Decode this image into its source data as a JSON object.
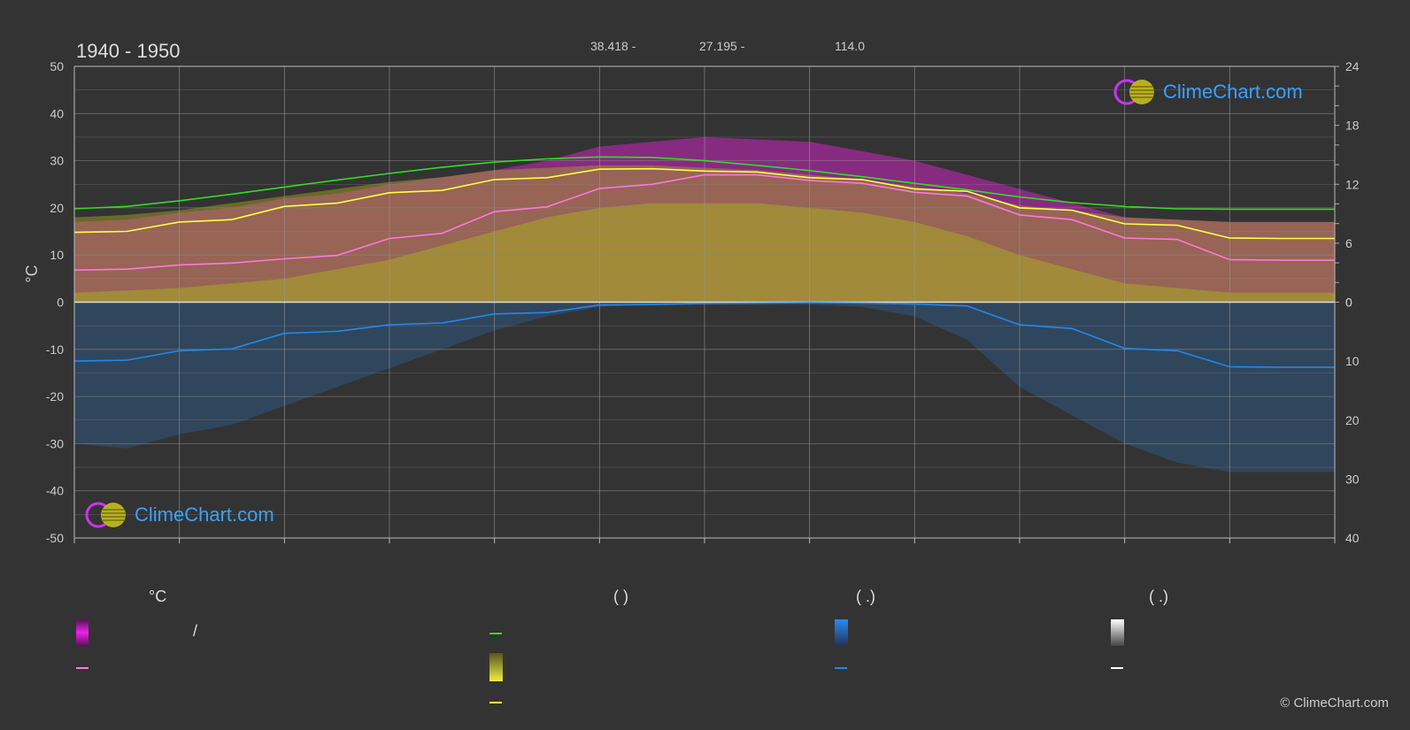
{
  "title": "1940 - 1950",
  "header_values": [
    "38.418 -",
    "27.195 -",
    "114.0"
  ],
  "logo_text": "ClimeChart.com",
  "copyright": "© ClimeChart.com",
  "legend": {
    "col1_head": "°C",
    "col2_head": "(          )",
    "col3_head": "(    .)",
    "col4_head": "(    .)",
    "slash": "/"
  },
  "colors": {
    "background": "#333333",
    "sunshine_line": "#33dd22",
    "daylight_line": "#ffff44",
    "max_temp_line": "#ff77dd",
    "precip_line": "#2288ee",
    "magenta_band": "#ee22dd",
    "olive_band": "#aaaa22",
    "blue_band": "#2a6aaa"
  },
  "chart_data": {
    "type": "line",
    "title": "1940 - 1950",
    "ylabel_left": "°C",
    "y_left_lim": [
      -50,
      50
    ],
    "y_left_ticks": [
      50,
      40,
      30,
      20,
      10,
      0,
      -10,
      -20,
      -30,
      -40,
      -50
    ],
    "y_right_top_ticks": [
      24,
      18,
      12,
      6,
      0
    ],
    "y_right_bottom_ticks": [
      0,
      10,
      20,
      30,
      40
    ],
    "x": [
      0,
      0.5,
      1,
      1.5,
      2,
      2.5,
      3,
      3.5,
      4,
      4.5,
      5,
      5.5,
      6,
      6.5,
      7,
      7.5,
      8,
      8.5,
      9,
      9.5,
      10,
      10.5,
      11,
      11.5,
      12
    ],
    "series": [
      {
        "key": "sunshine",
        "color": "#33dd22",
        "values": [
          19.8,
          20.3,
          21.5,
          22.9,
          24.4,
          25.9,
          27.3,
          28.6,
          29.7,
          30.4,
          30.8,
          30.7,
          30.0,
          29.0,
          27.9,
          26.6,
          25.2,
          23.8,
          22.3,
          21.1,
          20.3,
          19.8,
          19.7,
          19.7,
          19.7
        ]
      },
      {
        "key": "daylight",
        "color": "#ffff44",
        "values": [
          14.8,
          15.0,
          17.0,
          17.5,
          20.3,
          21.0,
          23.2,
          23.7,
          26.0,
          26.4,
          28.2,
          28.3,
          27.8,
          27.6,
          26.4,
          26.0,
          24.0,
          23.5,
          20.0,
          19.5,
          16.6,
          16.3,
          13.6,
          13.5,
          13.5
        ]
      },
      {
        "key": "max_temp",
        "color": "#ff77dd",
        "values": [
          6.8,
          7.0,
          7.9,
          8.3,
          9.2,
          9.9,
          13.5,
          14.6,
          19.2,
          20.2,
          24.1,
          25.0,
          27.0,
          27.0,
          25.8,
          25.2,
          23.3,
          22.5,
          18.5,
          17.5,
          13.6,
          13.3,
          9.0,
          8.9,
          8.9
        ]
      },
      {
        "key": "precip",
        "color": "#2288ee",
        "values": [
          -12.5,
          -12.3,
          -10.3,
          -9.9,
          -6.6,
          -6.2,
          -4.8,
          -4.4,
          -2.5,
          -2.2,
          -0.6,
          -0.5,
          -0.3,
          -0.2,
          -0.1,
          -0.2,
          -0.4,
          -0.8,
          -4.8,
          -5.6,
          -9.8,
          -10.3,
          -13.7,
          -13.8,
          -13.8
        ]
      }
    ],
    "band_magenta_top": [
      17,
      17.5,
      19,
      20,
      22,
      23,
      25,
      26.5,
      28,
      30,
      33,
      34,
      35,
      34.5,
      34,
      32,
      30,
      27,
      24,
      21,
      18,
      17.5,
      17,
      17,
      17
    ],
    "band_olive_top": [
      18,
      18.5,
      19.5,
      21,
      22.5,
      24,
      25.5,
      26.5,
      28,
      28.5,
      29,
      29,
      28.5,
      28,
      27,
      26,
      24.5,
      23,
      20.5,
      19.5,
      18,
      17.5,
      17,
      17,
      17
    ],
    "band_olive_inner": [
      2,
      2.5,
      3,
      4,
      5,
      7,
      9,
      12,
      15,
      18,
      20,
      21,
      21,
      21,
      20,
      19,
      17,
      14,
      10,
      7,
      4,
      3,
      2,
      2,
      2
    ],
    "band_blue_bottom": [
      -30,
      -31,
      -28,
      -26,
      -22,
      -18,
      -14,
      -10,
      -6,
      -3,
      -1,
      -0.5,
      -0.5,
      -0.5,
      -0.5,
      -1,
      -3,
      -8,
      -18,
      -24,
      -30,
      -34,
      -36,
      -36,
      -36
    ],
    "grid": true,
    "x_months": 12
  }
}
